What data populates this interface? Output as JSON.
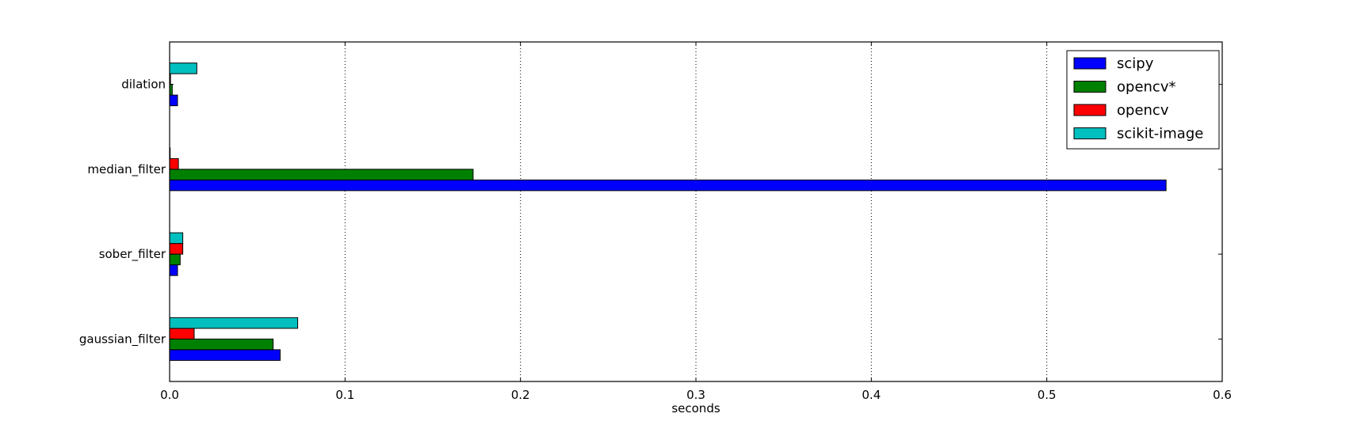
{
  "chart_data": {
    "type": "bar",
    "orientation": "horizontal",
    "title": "",
    "xlabel": "seconds",
    "ylabel": "",
    "xlim": [
      0,
      0.6
    ],
    "xticks": [
      "0.0",
      "0.1",
      "0.2",
      "0.3",
      "0.4",
      "0.5",
      "0.6"
    ],
    "grid": "vertical dotted",
    "legend_position": "top-right",
    "categories": [
      "dilation",
      "median_filter",
      "sober_filter",
      "gaussian_filter"
    ],
    "series": [
      {
        "name": "scipy",
        "color": "#0000ff",
        "values": [
          0.0045,
          0.568,
          0.0045,
          0.063
        ]
      },
      {
        "name": "opencv*",
        "color": "#008000",
        "values": [
          0.0015,
          0.173,
          0.006,
          0.059
        ]
      },
      {
        "name": "opencv",
        "color": "#ff0000",
        "values": [
          0.0005,
          0.005,
          0.0075,
          0.014
        ]
      },
      {
        "name": "scikit-image",
        "color": "#00bfbf",
        "values": [
          0.0155,
          0.0003,
          0.0075,
          0.073
        ]
      }
    ]
  }
}
